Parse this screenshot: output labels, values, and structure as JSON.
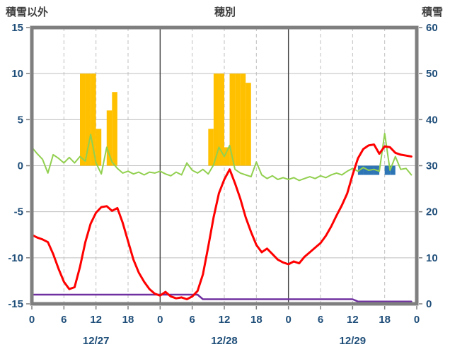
{
  "header": {
    "left_axis_title": "積雪以外",
    "station": "穂別",
    "right_axis_title": "積雪"
  },
  "chart_data": {
    "type": "line",
    "title": "穂別",
    "left_axis_label": "積雪以外",
    "right_axis_label": "積雪",
    "xlim": [
      0,
      72
    ],
    "x_tick_interval": 6,
    "x_tick_labels": [
      "0",
      "6",
      "12",
      "18",
      "0",
      "6",
      "12",
      "18",
      "0",
      "6",
      "12",
      "18",
      "0"
    ],
    "day_labels": [
      "12/27",
      "12/28",
      "12/29"
    ],
    "day_label_hours": [
      12,
      36,
      60
    ],
    "day_boundary_hours": [
      24,
      48
    ],
    "left_axis": {
      "range": [
        -15,
        15
      ],
      "ticks": [
        15,
        10,
        5,
        0,
        -5,
        -10,
        -15
      ]
    },
    "right_axis": {
      "range": [
        0,
        60
      ],
      "ticks": [
        60,
        50,
        40,
        30,
        20,
        10,
        0
      ]
    },
    "grid": {
      "horizontal_left_values": [
        10,
        5,
        0,
        -5,
        -10
      ],
      "vertical_dashed_hours": [
        6,
        12,
        18,
        30,
        36,
        42,
        54,
        60,
        66
      ]
    },
    "series": {
      "red_line": {
        "axis": "left",
        "values": [
          -7.5,
          -7.8,
          -8.0,
          -8.3,
          -9.6,
          -11.2,
          -12.6,
          -13.4,
          -13.2,
          -11.0,
          -8.3,
          -6.3,
          -5.1,
          -4.5,
          -4.4,
          -4.9,
          -4.6,
          -6.2,
          -8.2,
          -10.2,
          -11.6,
          -12.6,
          -13.4,
          -13.9,
          -14.1,
          -13.7,
          -14.2,
          -14.4,
          -14.3,
          -14.5,
          -14.2,
          -13.6,
          -11.8,
          -8.8,
          -5.6,
          -3.0,
          -1.5,
          -0.4,
          -1.9,
          -3.6,
          -5.6,
          -7.2,
          -8.6,
          -9.4,
          -9.0,
          -9.6,
          -10.2,
          -10.5,
          -10.7,
          -10.4,
          -10.6,
          -9.9,
          -9.4,
          -8.9,
          -8.4,
          -7.6,
          -6.6,
          -5.4,
          -4.3,
          -3.0,
          -1.0,
          0.8,
          1.8,
          2.2,
          2.3,
          1.3,
          2.1,
          2.0,
          1.4,
          1.2,
          1.1,
          1.0
        ]
      },
      "green_line": {
        "axis": "left",
        "values": [
          2.0,
          1.3,
          0.7,
          -0.8,
          1.2,
          0.8,
          0.3,
          0.9,
          0.3,
          1.0,
          0.5,
          3.4,
          0.3,
          -0.9,
          2.0,
          0.4,
          -0.3,
          -0.8,
          -0.6,
          -0.9,
          -0.7,
          -1.0,
          -0.7,
          -0.8,
          -0.6,
          -0.9,
          -1.1,
          -0.7,
          -1.0,
          0.3,
          -0.5,
          -0.8,
          -0.4,
          -0.9,
          0.1,
          2.0,
          1.0,
          2.2,
          -0.4,
          -0.8,
          -1.0,
          -1.2,
          0.4,
          -1.0,
          -1.4,
          -1.1,
          -1.5,
          -1.3,
          -1.5,
          -1.3,
          -1.6,
          -1.4,
          -1.2,
          -1.4,
          -1.1,
          -1.3,
          -1.0,
          -0.8,
          -1.0,
          -0.6,
          -0.3,
          -0.6,
          -0.2,
          -0.5,
          -0.4,
          -0.6,
          3.5,
          -0.5,
          1.0,
          -0.4,
          -0.3,
          -1.0
        ]
      },
      "orange_bars": {
        "axis": "left",
        "direction": "up",
        "values": [
          0,
          0,
          0,
          0,
          0,
          0,
          0,
          0,
          0,
          10,
          10,
          10,
          4,
          0,
          6,
          8,
          0,
          0,
          0,
          0,
          0,
          0,
          0,
          0,
          0,
          0,
          0,
          0,
          0,
          0,
          0,
          0,
          0,
          4,
          10,
          10,
          2,
          10,
          10,
          10,
          9,
          0,
          0,
          0,
          0,
          0,
          0,
          0,
          0,
          0,
          0,
          0,
          0,
          0,
          0,
          0,
          0,
          0,
          0,
          0,
          0,
          0,
          0,
          0,
          0,
          0,
          0,
          0,
          0,
          0,
          0,
          0
        ]
      },
      "blue_bars": {
        "axis": "left",
        "direction": "down",
        "values": [
          0,
          0,
          0,
          0,
          0,
          0,
          0,
          0,
          0,
          0,
          0,
          0,
          0,
          0,
          0,
          0,
          0,
          0,
          0,
          0,
          0,
          0,
          0,
          0,
          0,
          0,
          0,
          0,
          0,
          0,
          0,
          0,
          0,
          0,
          0,
          0,
          0,
          0,
          0,
          0,
          0,
          0,
          0,
          0,
          0,
          0,
          0,
          0,
          0,
          0,
          0,
          0,
          0,
          0,
          0,
          0,
          0,
          0,
          0,
          0,
          0,
          1,
          1,
          1,
          1,
          0,
          1,
          1,
          0,
          0,
          0,
          0
        ]
      },
      "purple_line": {
        "axis": "right",
        "values": [
          2,
          2,
          2,
          2,
          2,
          2,
          2,
          2,
          2,
          2,
          2,
          2,
          2,
          2,
          2,
          2,
          2,
          2,
          2,
          2,
          2,
          2,
          2,
          2,
          2,
          2,
          2,
          2,
          2,
          2,
          2,
          2,
          1,
          1,
          1,
          1,
          1,
          1,
          1,
          1,
          1,
          1,
          1,
          1,
          1,
          1,
          1,
          1,
          1,
          1,
          1,
          1,
          1,
          1,
          1,
          1,
          1,
          1,
          1,
          1,
          1,
          0.5,
          0.5,
          0.5,
          0.5,
          0.5,
          0.5,
          0.5,
          0.5,
          0.5,
          0.5,
          0.5
        ]
      }
    },
    "colors": {
      "red": "#FF0000",
      "green": "#92D050",
      "orange": "#FFC000",
      "blue": "#2E75B6",
      "purple": "#7030A0",
      "grid": "#BFBFBF",
      "frame": "#7F7F7F",
      "day_line": "#404040",
      "tick_label": "#1F4E79",
      "title": "#404040"
    }
  }
}
